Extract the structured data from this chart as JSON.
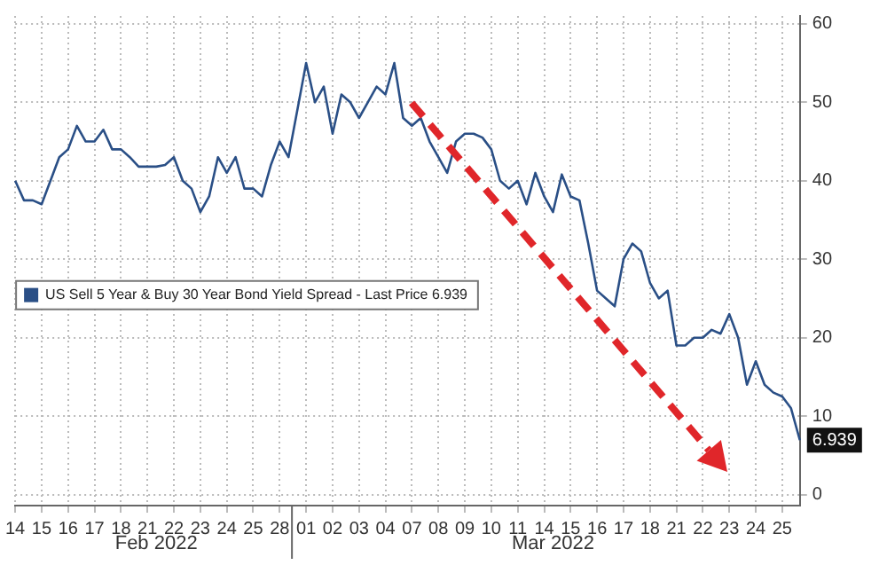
{
  "chart_data": {
    "type": "line",
    "categories": [
      "14",
      null,
      null,
      "15",
      null,
      null,
      "16",
      null,
      null,
      "17",
      null,
      null,
      "18",
      null,
      null,
      "21",
      null,
      null,
      "22",
      null,
      null,
      "23",
      null,
      null,
      "24",
      null,
      null,
      "25",
      null,
      null,
      "28",
      null,
      null,
      "01",
      null,
      null,
      "02",
      null,
      null,
      "03",
      null,
      null,
      "04",
      null,
      null,
      "07",
      null,
      null,
      "08",
      null,
      null,
      "09",
      null,
      null,
      "10",
      null,
      null,
      "11",
      null,
      null,
      "14",
      null,
      null,
      "15",
      null,
      null,
      "16",
      null,
      null,
      "17",
      null,
      null,
      "18",
      null,
      null,
      "21",
      null,
      null,
      "22",
      null,
      null,
      "23",
      null,
      null,
      "24",
      null,
      null,
      "25",
      null,
      null
    ],
    "series": [
      {
        "name": "US Sell 5 Year & Buy 30 Year Bond Yield Spread - Last Price 6.939",
        "color": "#2a4f86",
        "values": [
          40,
          37.5,
          37.5,
          37,
          40,
          43,
          44,
          47,
          45,
          45,
          46.5,
          44,
          44,
          43,
          41.8,
          41.8,
          41.8,
          42,
          43,
          40,
          39,
          36,
          38,
          43,
          41,
          43,
          39,
          39,
          38,
          42,
          45,
          43,
          49,
          55,
          50,
          52,
          46,
          51,
          50,
          48,
          50,
          52,
          51,
          55,
          48,
          47,
          48,
          45,
          43,
          41,
          45,
          46,
          46,
          45.5,
          44,
          40,
          39,
          40,
          37,
          41,
          38,
          36,
          40.8,
          38,
          37.5,
          32,
          26,
          25,
          24,
          30,
          32,
          31,
          27,
          25,
          26,
          19,
          19,
          20,
          20,
          21,
          20.5,
          23,
          20,
          14,
          17,
          14,
          13,
          12.5,
          11,
          6.939
        ],
        "value_labels": [
          null,
          null,
          null,
          null,
          null,
          null,
          null,
          null,
          null,
          null,
          null,
          null,
          null,
          null,
          null,
          null,
          null,
          null,
          null,
          null,
          null,
          null,
          null,
          null,
          null,
          null,
          null,
          null,
          null,
          null,
          null,
          null,
          null,
          null,
          null,
          null,
          null,
          null,
          null,
          null,
          null,
          null,
          null,
          null,
          null,
          null,
          null,
          null,
          null,
          null,
          null,
          null,
          null,
          null,
          null,
          null,
          null,
          null,
          null,
          null,
          null,
          null,
          null,
          null,
          null,
          null,
          null,
          null,
          null,
          null,
          null,
          null,
          null,
          null,
          null,
          null,
          null,
          null,
          null,
          null,
          null,
          null,
          null,
          null,
          null,
          null,
          null,
          null,
          null,
          "6.939"
        ]
      }
    ],
    "ylim": [
      -1.4,
      61
    ],
    "yticks": [
      0,
      10,
      20,
      30,
      40,
      50,
      60
    ],
    "grid": true,
    "legend": "left",
    "marker": "none",
    "line_style": "solid",
    "annotations": [
      "Feb 2022",
      "Mar 2022"
    ]
  }
}
